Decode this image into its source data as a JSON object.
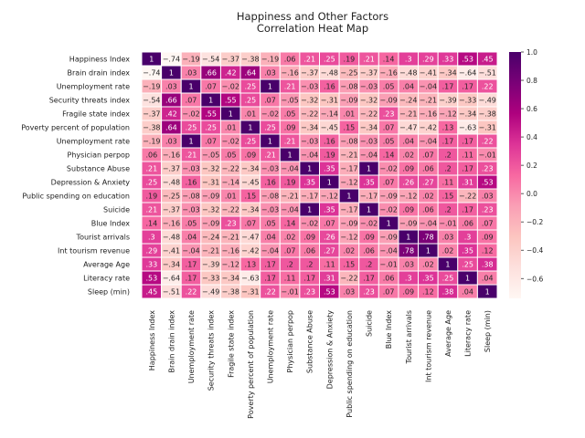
{
  "chart_data": {
    "type": "heatmap",
    "title": "Happiness and Other Factors",
    "subtitle": "Correlation Heat Map",
    "row_labels": [
      "Happiness Index",
      "Brain drain index",
      "Unemployment rate",
      "Security threats index",
      "Fragile state index",
      "Poverty percent of population",
      "Unemployment rate",
      "Physician perpop",
      "Substance Abuse",
      "Depression & Anxiety",
      "Public spending on education",
      "Suicide",
      "Blue Index",
      "Tourist arrivals",
      "Int tourism revenue",
      "Average Age",
      "Literacy rate",
      "Sleep (min)"
    ],
    "col_labels": [
      "Happiness Index",
      "Brain drain index",
      "Unemployment rate",
      "Security threats index",
      "Fragile state index",
      "Poverty percent of population",
      "Unemployment rate",
      "Physician perpop",
      "Substance Abuse",
      "Depression & Anxiety",
      "Public spending on education",
      "Suicide",
      "Blue Index",
      "Tourist arrivals",
      "Int tourism revenue",
      "Average Age",
      "Literacy rate",
      "Sleep (min)"
    ],
    "matrix": [
      [
        1,
        -0.74,
        -0.19,
        -0.54,
        -0.37,
        -0.38,
        -0.19,
        0.06,
        0.21,
        0.25,
        0.19,
        0.21,
        0.14,
        0.3,
        0.29,
        0.33,
        0.53,
        0.45
      ],
      [
        -0.74,
        1,
        0.03,
        0.66,
        0.42,
        0.64,
        0.03,
        -0.16,
        -0.37,
        -0.48,
        -0.25,
        -0.37,
        -0.16,
        -0.48,
        -0.41,
        -0.34,
        -0.64,
        -0.51
      ],
      [
        -0.19,
        0.03,
        1,
        0.07,
        -0.02,
        0.25,
        1,
        0.21,
        -0.03,
        0.16,
        -0.08,
        -0.03,
        0.05,
        0.04,
        -0.04,
        0.17,
        0.17,
        0.22
      ],
      [
        -0.54,
        0.66,
        0.07,
        1,
        0.55,
        0.25,
        0.07,
        -0.05,
        -0.32,
        -0.31,
        -0.09,
        -0.32,
        -0.09,
        -0.24,
        -0.21,
        -0.39,
        -0.33,
        -0.49
      ],
      [
        -0.37,
        0.42,
        -0.02,
        0.55,
        1,
        0.01,
        -0.02,
        0.05,
        -0.22,
        -0.14,
        0.01,
        -0.22,
        0.23,
        -0.21,
        -0.16,
        -0.12,
        -0.34,
        -0.38
      ],
      [
        -0.38,
        0.64,
        0.25,
        0.25,
        0.01,
        1,
        0.25,
        0.09,
        -0.34,
        -0.45,
        0.15,
        -0.34,
        0.07,
        -0.47,
        -0.42,
        0.13,
        -0.63,
        -0.31
      ],
      [
        -0.19,
        0.03,
        1,
        0.07,
        -0.02,
        0.25,
        1,
        0.21,
        -0.03,
        0.16,
        -0.08,
        -0.03,
        0.05,
        0.04,
        -0.04,
        0.17,
        0.17,
        0.22
      ],
      [
        0.06,
        -0.16,
        0.21,
        -0.05,
        0.05,
        0.09,
        0.21,
        1,
        -0.04,
        0.19,
        -0.21,
        -0.04,
        0.14,
        0.02,
        0.07,
        0.2,
        0.11,
        -0.01
      ],
      [
        0.21,
        -0.37,
        -0.03,
        -0.32,
        -0.22,
        -0.34,
        -0.03,
        -0.04,
        1,
        0.35,
        -0.17,
        1,
        -0.02,
        0.09,
        0.06,
        0.2,
        0.17,
        0.23
      ],
      [
        0.25,
        -0.48,
        0.16,
        -0.31,
        -0.14,
        -0.45,
        0.16,
        0.19,
        0.35,
        1,
        -0.12,
        0.35,
        0.07,
        0.26,
        0.27,
        0.11,
        0.31,
        0.53
      ],
      [
        0.19,
        -0.25,
        -0.08,
        -0.09,
        0.01,
        0.15,
        -0.08,
        -0.21,
        -0.17,
        -0.12,
        1,
        -0.17,
        -0.09,
        -0.12,
        0.02,
        0.15,
        -0.22,
        0.03
      ],
      [
        0.21,
        -0.37,
        -0.03,
        -0.32,
        -0.22,
        -0.34,
        -0.03,
        -0.04,
        1,
        0.35,
        -0.17,
        1,
        -0.02,
        0.09,
        0.06,
        0.2,
        0.17,
        0.23
      ],
      [
        0.14,
        -0.16,
        0.05,
        -0.09,
        0.23,
        0.07,
        0.05,
        0.14,
        -0.02,
        0.07,
        -0.09,
        -0.02,
        1,
        -0.09,
        -0.04,
        -0.01,
        0.06,
        0.07
      ],
      [
        0.3,
        -0.48,
        0.04,
        -0.24,
        -0.21,
        -0.47,
        0.04,
        0.02,
        0.09,
        0.26,
        -0.12,
        0.09,
        -0.09,
        1,
        0.78,
        0.03,
        0.3,
        0.09
      ],
      [
        0.29,
        -0.41,
        -0.04,
        -0.21,
        -0.16,
        -0.42,
        -0.04,
        0.07,
        0.06,
        0.27,
        0.02,
        0.06,
        -0.04,
        0.78,
        1,
        0.02,
        0.35,
        0.12
      ],
      [
        0.33,
        -0.34,
        0.17,
        -0.39,
        -0.12,
        0.13,
        0.17,
        0.2,
        0.2,
        0.11,
        0.15,
        0.2,
        -0.01,
        0.03,
        0.02,
        1,
        0.25,
        0.38
      ],
      [
        0.53,
        -0.64,
        0.17,
        -0.33,
        -0.34,
        -0.63,
        0.17,
        0.11,
        0.17,
        0.31,
        -0.22,
        0.17,
        0.06,
        0.3,
        0.35,
        0.25,
        1,
        0.04
      ],
      [
        0.45,
        -0.51,
        0.22,
        -0.49,
        -0.38,
        -0.31,
        0.22,
        -0.01,
        0.23,
        0.53,
        0.03,
        0.23,
        0.07,
        0.09,
        0.12,
        0.38,
        0.04,
        1
      ]
    ],
    "value_range": [
      -0.74,
      1
    ],
    "colorbar": {
      "ticks": [
        1.0,
        0.8,
        0.6,
        0.4,
        0.2,
        0.0,
        -0.2,
        -0.4,
        -0.6
      ],
      "tick_labels": [
        "1.0",
        "0.8",
        "0.6",
        "0.4",
        "0.2",
        "0.0",
        "−0.2",
        "−0.4",
        "−0.6"
      ],
      "colormap": "RdPu"
    },
    "colors": [
      "#fff7f3",
      "#fde0dd",
      "#fcc5c0",
      "#fa9fb5",
      "#f768a1",
      "#dd3497",
      "#ae017e",
      "#7a0177",
      "#49006a"
    ]
  }
}
